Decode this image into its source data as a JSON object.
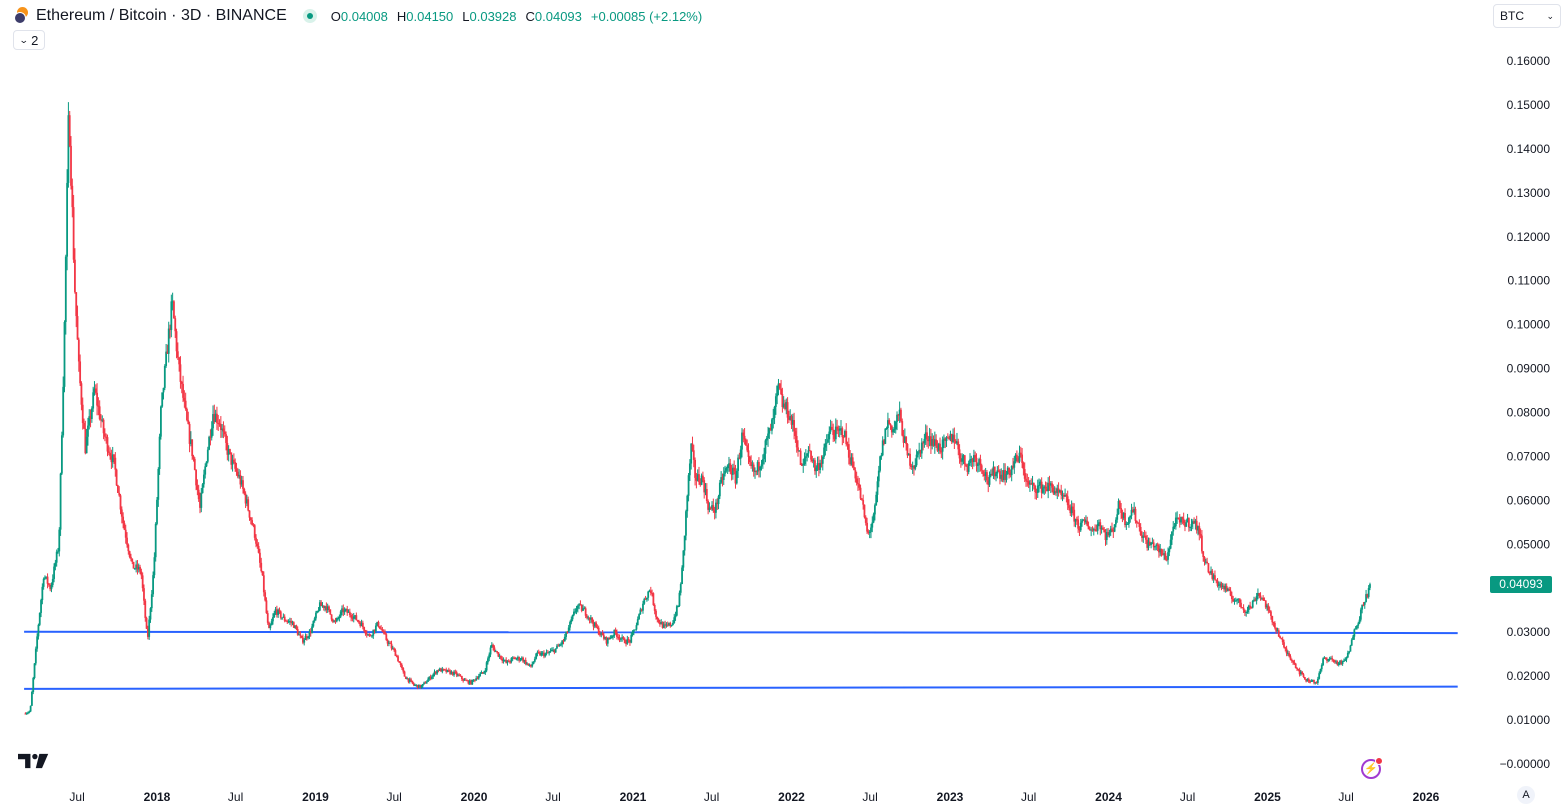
{
  "header": {
    "title": "Ethereum / Bitcoin · 3D · BINANCE",
    "ohlc": [
      {
        "key": "O",
        "value": "0.04008"
      },
      {
        "key": "H",
        "value": "0.04150"
      },
      {
        "key": "L",
        "value": "0.03928"
      },
      {
        "key": "C",
        "value": "0.04093"
      }
    ],
    "change": "+0.00085 (+2.12%)"
  },
  "indicator_toggle": {
    "count": "2"
  },
  "currency_selector": {
    "value": "BTC"
  },
  "last_price_label": "0.04093",
  "auto_scale_label": "A",
  "colors": {
    "up": "#089981",
    "down": "#f23645",
    "support_line": "#2962ff",
    "flash_icon": "#a13bd1"
  },
  "icons": [
    "eth-btc-symbol-icon",
    "chevron-down-icon",
    "tradingview-logo-icon",
    "flash-icon"
  ],
  "chart_data": {
    "type": "candlestick",
    "symbol": "ETHBTC",
    "interval": "3D",
    "exchange": "BINANCE",
    "price_scale": {
      "unit": "BTC",
      "min": 0,
      "max": 0.16,
      "step": 0.01
    },
    "y_tick_labels": [
      "0.16000",
      "0.15000",
      "0.14000",
      "0.13000",
      "0.12000",
      "0.11000",
      "0.10000",
      "0.09000",
      "0.08000",
      "0.07000",
      "0.06000",
      "0.05000",
      "0.04000",
      "0.03000",
      "0.02000",
      "0.01000",
      "−0.00000"
    ],
    "x_tick_labels": [
      {
        "label": "Jul",
        "date": "2017-07"
      },
      {
        "label": "2018",
        "date": "2018-01"
      },
      {
        "label": "Jul",
        "date": "2018-07"
      },
      {
        "label": "2019",
        "date": "2019-01"
      },
      {
        "label": "Jul",
        "date": "2019-07"
      },
      {
        "label": "2020",
        "date": "2020-01"
      },
      {
        "label": "Jul",
        "date": "2020-07"
      },
      {
        "label": "2021",
        "date": "2021-01"
      },
      {
        "label": "Jul",
        "date": "2021-07"
      },
      {
        "label": "2022",
        "date": "2022-01"
      },
      {
        "label": "Jul",
        "date": "2022-07"
      },
      {
        "label": "2023",
        "date": "2023-01"
      },
      {
        "label": "Jul",
        "date": "2023-07"
      },
      {
        "label": "2024",
        "date": "2024-01"
      },
      {
        "label": "Jul",
        "date": "2024-07"
      },
      {
        "label": "2025",
        "date": "2025-01"
      },
      {
        "label": "Jul",
        "date": "2025-07"
      },
      {
        "label": "2026",
        "date": "2026-01"
      }
    ],
    "close_path": [
      [
        "2017-03-01",
        0.0115
      ],
      [
        "2017-03-15",
        0.012
      ],
      [
        "2017-04-01",
        0.03
      ],
      [
        "2017-04-15",
        0.043
      ],
      [
        "2017-05-01",
        0.04
      ],
      [
        "2017-05-20",
        0.05
      ],
      [
        "2017-06-01",
        0.095
      ],
      [
        "2017-06-12",
        0.15
      ],
      [
        "2017-06-25",
        0.11
      ],
      [
        "2017-07-05",
        0.09
      ],
      [
        "2017-07-20",
        0.072
      ],
      [
        "2017-08-10",
        0.085
      ],
      [
        "2017-09-01",
        0.075
      ],
      [
        "2017-09-25",
        0.068
      ],
      [
        "2017-10-15",
        0.055
      ],
      [
        "2017-11-05",
        0.045
      ],
      [
        "2017-11-25",
        0.044
      ],
      [
        "2017-12-10",
        0.028
      ],
      [
        "2017-12-25",
        0.045
      ],
      [
        "2018-01-10",
        0.08
      ],
      [
        "2018-01-25",
        0.095
      ],
      [
        "2018-02-05",
        0.105
      ],
      [
        "2018-02-20",
        0.09
      ],
      [
        "2018-03-10",
        0.078
      ],
      [
        "2018-03-25",
        0.07
      ],
      [
        "2018-04-10",
        0.058
      ],
      [
        "2018-04-25",
        0.07
      ],
      [
        "2018-05-10",
        0.08
      ],
      [
        "2018-05-25",
        0.078
      ],
      [
        "2018-06-10",
        0.072
      ],
      [
        "2018-06-25",
        0.068
      ],
      [
        "2018-07-10",
        0.065
      ],
      [
        "2018-07-25",
        0.06
      ],
      [
        "2018-08-15",
        0.052
      ],
      [
        "2018-09-01",
        0.042
      ],
      [
        "2018-09-15",
        0.03
      ],
      [
        "2018-10-01",
        0.035
      ],
      [
        "2018-10-20",
        0.033
      ],
      [
        "2018-11-10",
        0.032
      ],
      [
        "2018-12-01",
        0.028
      ],
      [
        "2018-12-20",
        0.03
      ],
      [
        "2019-01-10",
        0.036
      ],
      [
        "2019-01-25",
        0.036
      ],
      [
        "2019-02-15",
        0.032
      ],
      [
        "2019-03-05",
        0.035
      ],
      [
        "2019-03-25",
        0.034
      ],
      [
        "2019-04-15",
        0.032
      ],
      [
        "2019-05-05",
        0.029
      ],
      [
        "2019-05-25",
        0.032
      ],
      [
        "2019-06-15",
        0.028
      ],
      [
        "2019-07-05",
        0.025
      ],
      [
        "2019-07-25",
        0.02
      ],
      [
        "2019-08-15",
        0.018
      ],
      [
        "2019-09-01",
        0.0175
      ],
      [
        "2019-09-20",
        0.0195
      ],
      [
        "2019-10-10",
        0.0215
      ],
      [
        "2019-11-01",
        0.021
      ],
      [
        "2019-11-20",
        0.0205
      ],
      [
        "2019-12-10",
        0.019
      ],
      [
        "2019-12-25",
        0.0185
      ],
      [
        "2020-01-10",
        0.02
      ],
      [
        "2020-01-25",
        0.021
      ],
      [
        "2020-02-10",
        0.027
      ],
      [
        "2020-02-25",
        0.025
      ],
      [
        "2020-03-15",
        0.023
      ],
      [
        "2020-04-01",
        0.024
      ],
      [
        "2020-04-20",
        0.024
      ],
      [
        "2020-05-10",
        0.022
      ],
      [
        "2020-05-25",
        0.025
      ],
      [
        "2020-06-15",
        0.025
      ],
      [
        "2020-07-05",
        0.026
      ],
      [
        "2020-07-25",
        0.028
      ],
      [
        "2020-08-10",
        0.032
      ],
      [
        "2020-08-25",
        0.036
      ],
      [
        "2020-09-10",
        0.035
      ],
      [
        "2020-09-25",
        0.033
      ],
      [
        "2020-10-15",
        0.03
      ],
      [
        "2020-11-01",
        0.028
      ],
      [
        "2020-11-20",
        0.03
      ],
      [
        "2020-12-10",
        0.028
      ],
      [
        "2020-12-25",
        0.028
      ],
      [
        "2021-01-10",
        0.032
      ],
      [
        "2021-01-25",
        0.037
      ],
      [
        "2021-02-10",
        0.04
      ],
      [
        "2021-02-25",
        0.033
      ],
      [
        "2021-03-15",
        0.031
      ],
      [
        "2021-04-01",
        0.032
      ],
      [
        "2021-04-15",
        0.036
      ],
      [
        "2021-04-25",
        0.045
      ],
      [
        "2021-05-05",
        0.06
      ],
      [
        "2021-05-15",
        0.072
      ],
      [
        "2021-05-25",
        0.065
      ],
      [
        "2021-06-10",
        0.065
      ],
      [
        "2021-06-25",
        0.058
      ],
      [
        "2021-07-10",
        0.058
      ],
      [
        "2021-07-25",
        0.065
      ],
      [
        "2021-08-10",
        0.068
      ],
      [
        "2021-08-25",
        0.065
      ],
      [
        "2021-09-10",
        0.075
      ],
      [
        "2021-09-25",
        0.068
      ],
      [
        "2021-10-10",
        0.066
      ],
      [
        "2021-10-25",
        0.07
      ],
      [
        "2021-11-10",
        0.075
      ],
      [
        "2021-11-20",
        0.078
      ],
      [
        "2021-12-01",
        0.086
      ],
      [
        "2021-12-10",
        0.082
      ],
      [
        "2021-12-25",
        0.08
      ],
      [
        "2022-01-10",
        0.075
      ],
      [
        "2022-01-25",
        0.067
      ],
      [
        "2022-02-10",
        0.072
      ],
      [
        "2022-02-25",
        0.067
      ],
      [
        "2022-03-15",
        0.07
      ],
      [
        "2022-03-31",
        0.076
      ],
      [
        "2022-04-15",
        0.075
      ],
      [
        "2022-04-30",
        0.076
      ],
      [
        "2022-05-15",
        0.07
      ],
      [
        "2022-05-31",
        0.065
      ],
      [
        "2022-06-15",
        0.058
      ],
      [
        "2022-06-25",
        0.052
      ],
      [
        "2022-07-10",
        0.056
      ],
      [
        "2022-07-25",
        0.07
      ],
      [
        "2022-08-10",
        0.078
      ],
      [
        "2022-08-25",
        0.076
      ],
      [
        "2022-09-05",
        0.08
      ],
      [
        "2022-09-15",
        0.075
      ],
      [
        "2022-09-25",
        0.07
      ],
      [
        "2022-10-10",
        0.068
      ],
      [
        "2022-10-25",
        0.072
      ],
      [
        "2022-11-10",
        0.075
      ],
      [
        "2022-11-25",
        0.073
      ],
      [
        "2022-12-10",
        0.072
      ],
      [
        "2022-12-25",
        0.073
      ],
      [
        "2023-01-10",
        0.075
      ],
      [
        "2023-01-25",
        0.07
      ],
      [
        "2023-02-10",
        0.068
      ],
      [
        "2023-02-25",
        0.07
      ],
      [
        "2023-03-15",
        0.068
      ],
      [
        "2023-03-31",
        0.064
      ],
      [
        "2023-04-15",
        0.067
      ],
      [
        "2023-04-30",
        0.066
      ],
      [
        "2023-05-15",
        0.066
      ],
      [
        "2023-05-31",
        0.069
      ],
      [
        "2023-06-15",
        0.07
      ],
      [
        "2023-06-25",
        0.064
      ],
      [
        "2023-07-10",
        0.063
      ],
      [
        "2023-07-25",
        0.063
      ],
      [
        "2023-08-10",
        0.063
      ],
      [
        "2023-08-25",
        0.063
      ],
      [
        "2023-09-10",
        0.061
      ],
      [
        "2023-09-25",
        0.06
      ],
      [
        "2023-10-10",
        0.057
      ],
      [
        "2023-10-25",
        0.054
      ],
      [
        "2023-11-10",
        0.055
      ],
      [
        "2023-11-25",
        0.053
      ],
      [
        "2023-12-10",
        0.055
      ],
      [
        "2023-12-25",
        0.052
      ],
      [
        "2024-01-10",
        0.053
      ],
      [
        "2024-01-25",
        0.059
      ],
      [
        "2024-02-10",
        0.055
      ],
      [
        "2024-02-25",
        0.058
      ],
      [
        "2024-03-15",
        0.053
      ],
      [
        "2024-03-31",
        0.05
      ],
      [
        "2024-04-15",
        0.05
      ],
      [
        "2024-04-30",
        0.048
      ],
      [
        "2024-05-15",
        0.047
      ],
      [
        "2024-05-31",
        0.055
      ],
      [
        "2024-06-15",
        0.055
      ],
      [
        "2024-06-25",
        0.055
      ],
      [
        "2024-07-10",
        0.055
      ],
      [
        "2024-07-25",
        0.054
      ],
      [
        "2024-08-10",
        0.046
      ],
      [
        "2024-08-25",
        0.043
      ],
      [
        "2024-09-10",
        0.041
      ],
      [
        "2024-09-25",
        0.04
      ],
      [
        "2024-10-10",
        0.038
      ],
      [
        "2024-10-25",
        0.037
      ],
      [
        "2024-11-10",
        0.035
      ],
      [
        "2024-11-25",
        0.036
      ],
      [
        "2024-12-10",
        0.039
      ],
      [
        "2024-12-25",
        0.037
      ],
      [
        "2025-01-10",
        0.033
      ],
      [
        "2025-01-25",
        0.03
      ],
      [
        "2025-02-10",
        0.026
      ],
      [
        "2025-02-25",
        0.024
      ],
      [
        "2025-03-15",
        0.021
      ],
      [
        "2025-04-01",
        0.019
      ],
      [
        "2025-04-15",
        0.019
      ],
      [
        "2025-04-25",
        0.0185
      ],
      [
        "2025-05-10",
        0.024
      ],
      [
        "2025-05-25",
        0.024
      ],
      [
        "2025-06-10",
        0.023
      ],
      [
        "2025-06-25",
        0.023
      ],
      [
        "2025-07-10",
        0.026
      ],
      [
        "2025-07-20",
        0.031
      ],
      [
        "2025-07-31",
        0.033
      ],
      [
        "2025-08-10",
        0.037
      ],
      [
        "2025-08-20",
        0.039
      ],
      [
        "2025-08-25",
        0.04093
      ]
    ],
    "last": {
      "open": 0.04008,
      "high": 0.0415,
      "low": 0.03928,
      "close": 0.04093,
      "change": 0.00085,
      "change_pct": 2.12
    },
    "support_lines": [
      {
        "from": [
          "2017-03-01",
          0.0301
        ],
        "to": [
          "2026-03-15",
          0.0298
        ]
      },
      {
        "from": [
          "2017-03-01",
          0.0171
        ],
        "to": [
          "2026-03-15",
          0.0176
        ]
      }
    ],
    "grid": false,
    "legend": "top-left"
  }
}
